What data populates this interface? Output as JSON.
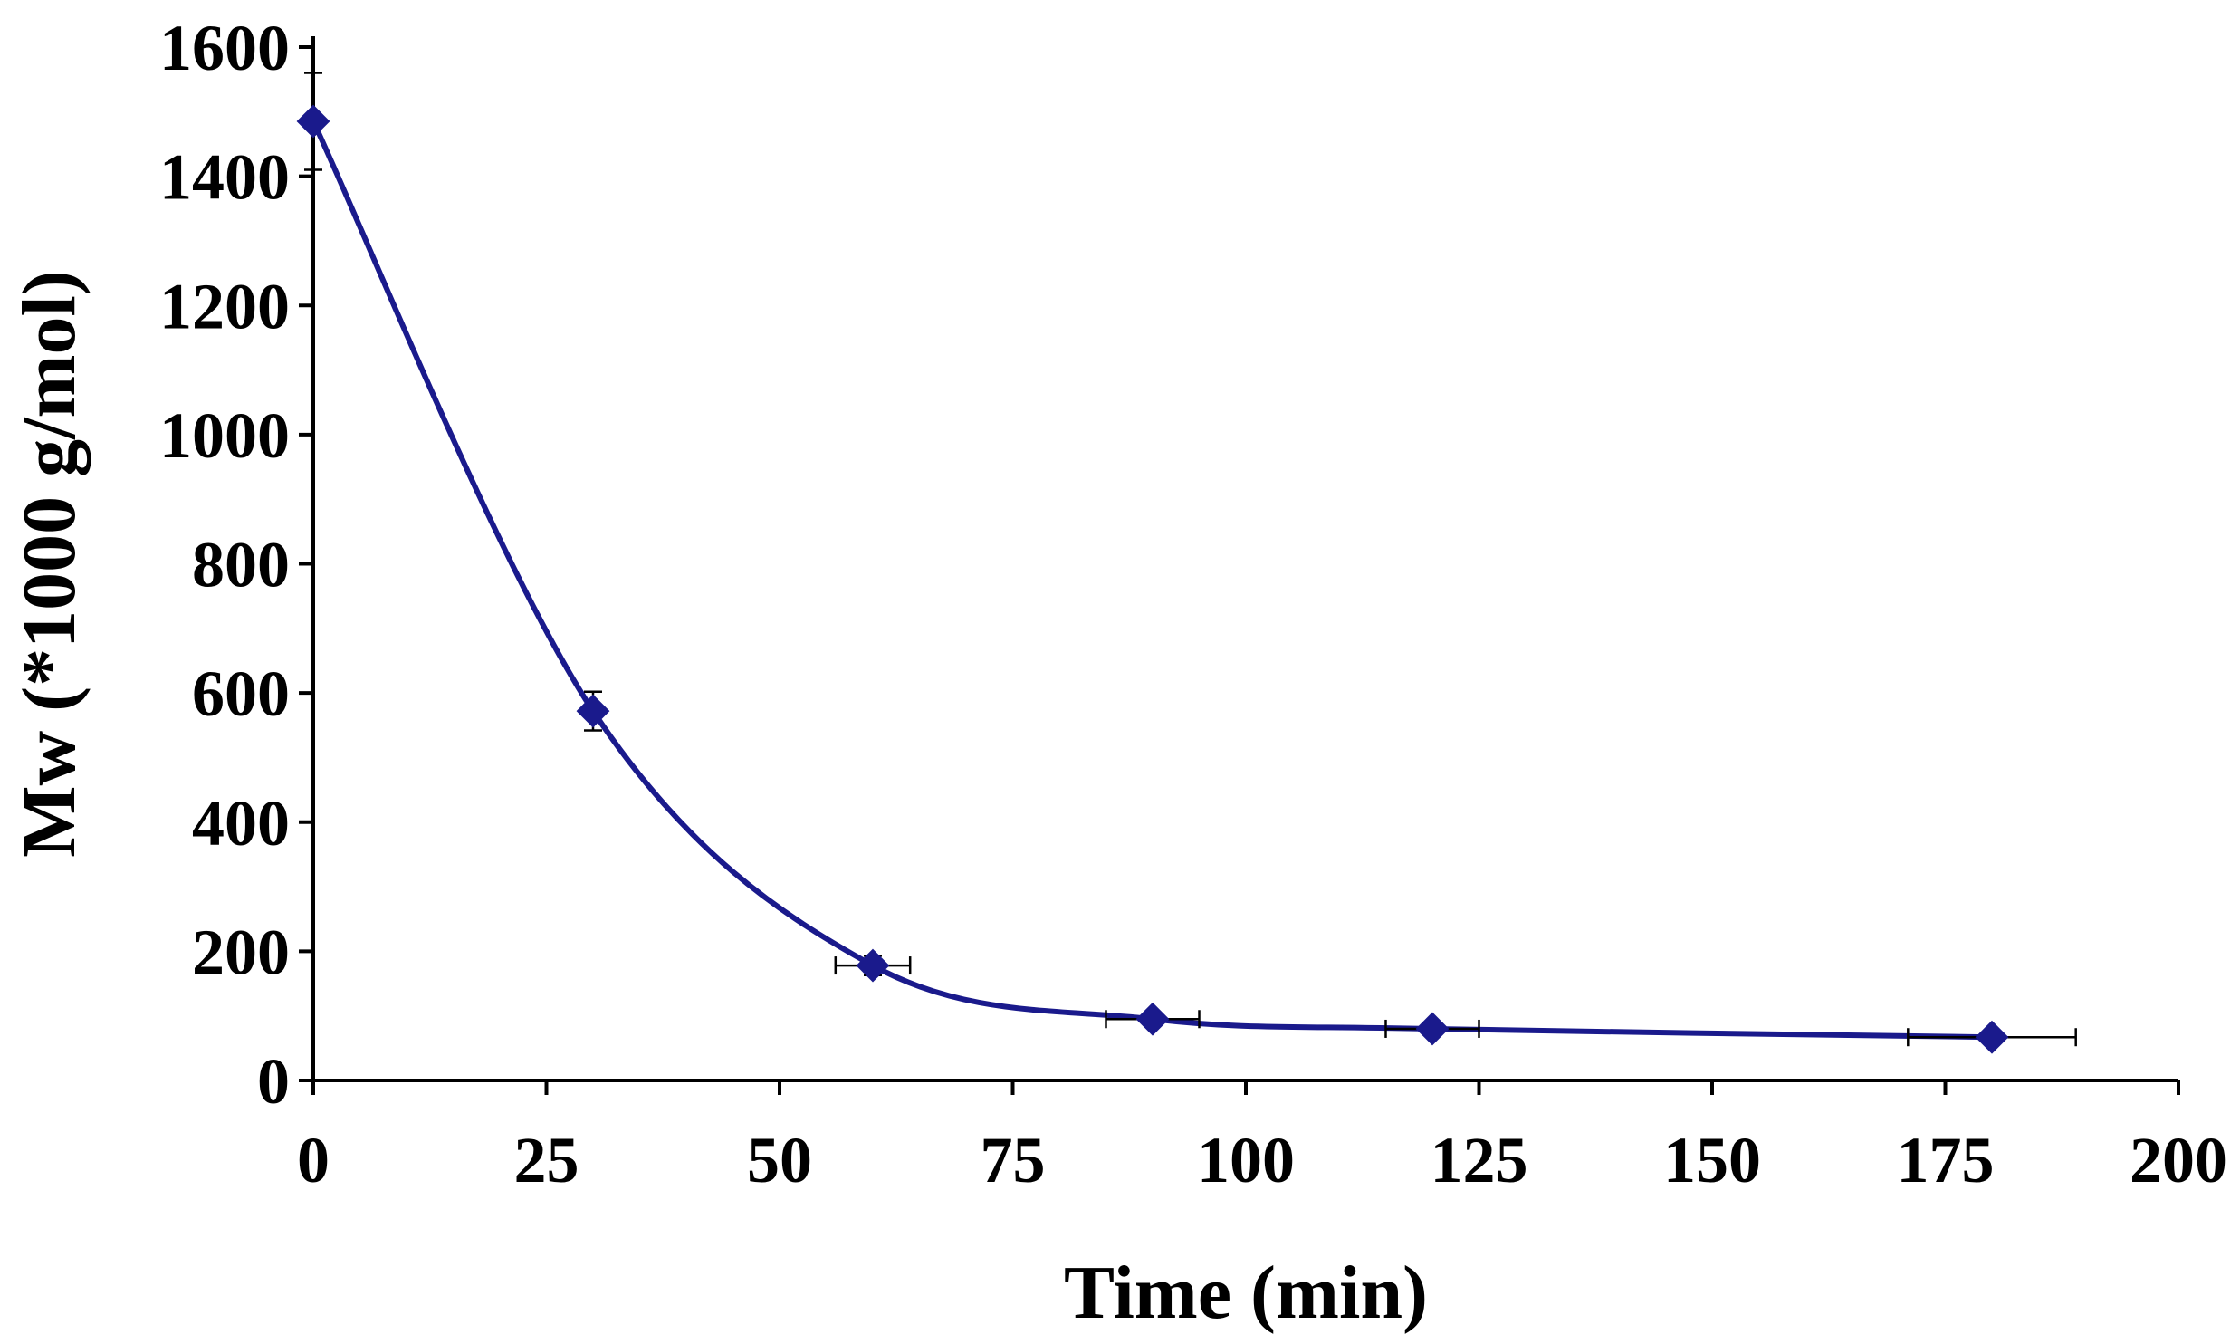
{
  "chart_data": {
    "type": "scatter",
    "title": "",
    "xlabel": "Time (min)",
    "ylabel": "Mw (*1000 g/mol)",
    "xlim": [
      0,
      200
    ],
    "ylim": [
      0,
      1600
    ],
    "xticks": [
      0,
      25,
      50,
      75,
      100,
      125,
      150,
      175,
      200
    ],
    "yticks": [
      0,
      200,
      400,
      600,
      800,
      1000,
      1200,
      1400,
      1600
    ],
    "grid": false,
    "line_style": "smoothed",
    "marker": "diamond",
    "series": [
      {
        "color": "#1a1a8c",
        "x": [
          0,
          30,
          60,
          90,
          120,
          180
        ],
        "y": [
          1485,
          572,
          178,
          95,
          80,
          67
        ],
        "y_err": [
          75,
          30,
          15,
          10,
          8,
          6
        ],
        "x_err": [
          0,
          0,
          4,
          5,
          5,
          9
        ]
      }
    ]
  }
}
